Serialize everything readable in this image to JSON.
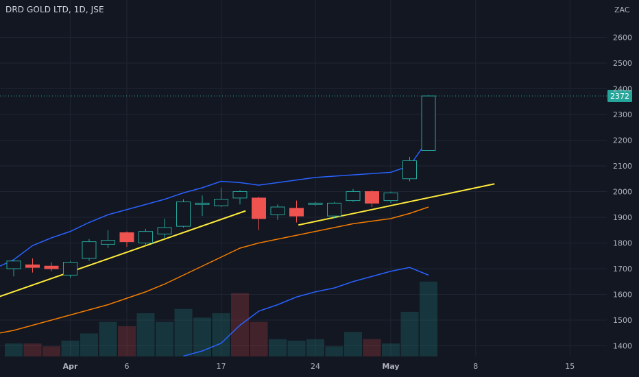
{
  "symbol": "DRD GOLD LTD, 1D, JSE",
  "currency": "ZAC",
  "last_price": "2372",
  "colors": {
    "background": "#131722",
    "up": "#26a69a",
    "down": "#ef5350",
    "ma_blue": "#2962ff",
    "ma_orange": "#f57c00",
    "trendline": "#ffeb3b",
    "grid": "#1f2433",
    "price_tag": "#26a69a"
  },
  "y_axis_ticks": [
    "2600",
    "2500",
    "2400",
    "2300",
    "2200",
    "2100",
    "2000",
    "1900",
    "1800",
    "1700",
    "1600",
    "1500",
    "1400"
  ],
  "x_axis_ticks": [
    {
      "label": "Apr",
      "bold": true
    },
    {
      "label": "6",
      "bold": false
    },
    {
      "label": "17",
      "bold": false
    },
    {
      "label": "24",
      "bold": false
    },
    {
      "label": "May",
      "bold": true
    },
    {
      "label": "8",
      "bold": false
    },
    {
      "label": "15",
      "bold": false
    }
  ],
  "chart_data": {
    "type": "candlestick",
    "ylim": [
      1340,
      2700
    ],
    "candles": [
      {
        "o": 1700,
        "h": 1735,
        "l": 1670,
        "c": 1730
      },
      {
        "o": 1715,
        "h": 1740,
        "l": 1685,
        "c": 1705
      },
      {
        "o": 1710,
        "h": 1725,
        "l": 1690,
        "c": 1700
      },
      {
        "o": 1675,
        "h": 1730,
        "l": 1665,
        "c": 1725
      },
      {
        "o": 1740,
        "h": 1815,
        "l": 1730,
        "c": 1805
      },
      {
        "o": 1795,
        "h": 1850,
        "l": 1780,
        "c": 1810
      },
      {
        "o": 1840,
        "h": 1845,
        "l": 1785,
        "c": 1805
      },
      {
        "o": 1800,
        "h": 1855,
        "l": 1790,
        "c": 1845
      },
      {
        "o": 1835,
        "h": 1895,
        "l": 1820,
        "c": 1860
      },
      {
        "o": 1865,
        "h": 1970,
        "l": 1860,
        "c": 1960
      },
      {
        "o": 1950,
        "h": 1985,
        "l": 1905,
        "c": 1955
      },
      {
        "o": 1945,
        "h": 2015,
        "l": 1940,
        "c": 1970
      },
      {
        "o": 1975,
        "h": 2005,
        "l": 1950,
        "c": 2000
      },
      {
        "o": 1975,
        "h": 1980,
        "l": 1850,
        "c": 1895
      },
      {
        "o": 1910,
        "h": 1950,
        "l": 1890,
        "c": 1940
      },
      {
        "o": 1935,
        "h": 1965,
        "l": 1880,
        "c": 1905
      },
      {
        "o": 1950,
        "h": 1960,
        "l": 1945,
        "c": 1955
      },
      {
        "o": 1905,
        "h": 1960,
        "l": 1895,
        "c": 1955
      },
      {
        "o": 1965,
        "h": 2010,
        "l": 1960,
        "c": 2000
      },
      {
        "o": 2000,
        "h": 2005,
        "l": 1940,
        "c": 1955
      },
      {
        "o": 1965,
        "h": 2000,
        "l": 1955,
        "c": 1995
      },
      {
        "o": 2050,
        "h": 2135,
        "l": 2040,
        "c": 2120
      },
      {
        "o": 2160,
        "h": 2375,
        "l": 2160,
        "c": 2372
      }
    ],
    "volume": [
      {
        "v": 0.45,
        "up": true
      },
      {
        "v": 0.45,
        "up": false
      },
      {
        "v": 0.35,
        "up": false
      },
      {
        "v": 0.55,
        "up": true
      },
      {
        "v": 0.8,
        "up": true
      },
      {
        "v": 1.2,
        "up": true
      },
      {
        "v": 1.05,
        "up": false
      },
      {
        "v": 1.5,
        "up": true
      },
      {
        "v": 1.2,
        "up": true
      },
      {
        "v": 1.65,
        "up": true
      },
      {
        "v": 1.35,
        "up": true
      },
      {
        "v": 1.5,
        "up": true
      },
      {
        "v": 2.2,
        "up": false
      },
      {
        "v": 1.2,
        "up": false
      },
      {
        "v": 0.6,
        "up": true
      },
      {
        "v": 0.55,
        "up": true
      },
      {
        "v": 0.6,
        "up": true
      },
      {
        "v": 0.35,
        "up": true
      },
      {
        "v": 0.85,
        "up": true
      },
      {
        "v": 0.6,
        "up": false
      },
      {
        "v": 0.45,
        "up": true
      },
      {
        "v": 1.55,
        "up": true
      },
      {
        "v": 2.6,
        "up": true
      }
    ],
    "ma_blue": [
      1735,
      1790,
      1820,
      1845,
      1880,
      1910,
      1930,
      1950,
      1970,
      1995,
      2015,
      2040,
      2035,
      2025,
      2035,
      2045,
      2055,
      2060,
      2065,
      2070,
      2075,
      2100,
      2205
    ],
    "ma_orange": [
      1460,
      1480,
      1500,
      1520,
      1540,
      1560,
      1585,
      1610,
      1640,
      1675,
      1710,
      1745,
      1780,
      1800,
      1815,
      1830,
      1845,
      1860,
      1875,
      1885,
      1895,
      1915,
      1940
    ],
    "ma_blue_lower": [
      null,
      null,
      null,
      null,
      null,
      null,
      null,
      null,
      null,
      1360,
      1380,
      1410,
      1480,
      1535,
      1560,
      1590,
      1610,
      1625,
      1650,
      1670,
      1690,
      1705,
      1675
    ],
    "trendlines": [
      {
        "x1": -1.2,
        "y1": 1580,
        "x2": 12.3,
        "y2": 1925
      },
      {
        "x1": 15.1,
        "y1": 1870,
        "x2": 25.5,
        "y2": 2030
      }
    ]
  }
}
